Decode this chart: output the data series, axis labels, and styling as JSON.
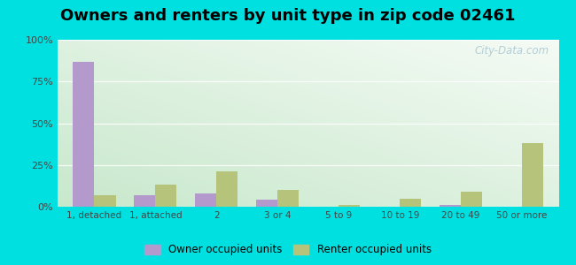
{
  "title": "Owners and renters by unit type in zip code 02461",
  "categories": [
    "1, detached",
    "1, attached",
    "2",
    "3 or 4",
    "5 to 9",
    "10 to 19",
    "20 to 49",
    "50 or more"
  ],
  "owner_values": [
    87,
    7,
    8,
    4,
    0,
    0,
    1,
    0
  ],
  "renter_values": [
    7,
    13,
    21,
    10,
    1,
    5,
    9,
    38
  ],
  "owner_color": "#b399cc",
  "renter_color": "#b5c47a",
  "background_color": "#00e0e0",
  "ylim": [
    0,
    100
  ],
  "bar_width": 0.35,
  "title_fontsize": 13,
  "legend_owner": "Owner occupied units",
  "legend_renter": "Renter occupied units",
  "watermark": "City-Data.com",
  "yticks": [
    0,
    25,
    50,
    75,
    100
  ],
  "ytick_labels": [
    "0%",
    "25%",
    "50%",
    "75%",
    "100%"
  ],
  "grid_color": "#ccddcc",
  "bg_top_right": "#f5fbf5",
  "bg_bottom_left": "#c8e8cc"
}
